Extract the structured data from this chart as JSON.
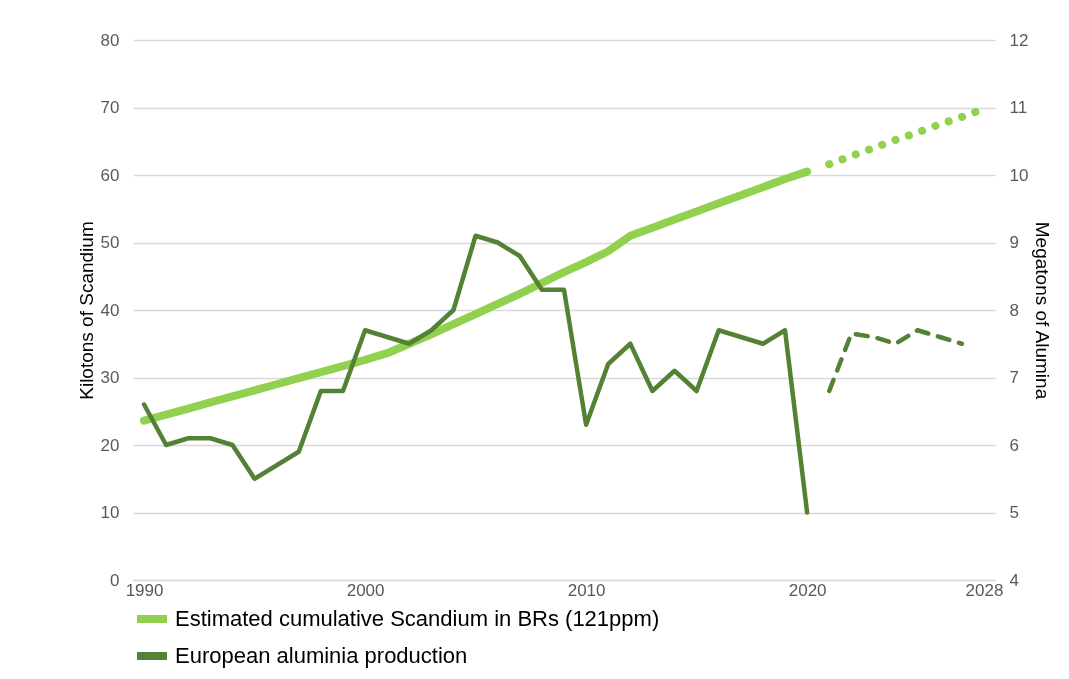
{
  "chart_data": {
    "type": "line",
    "ylabel": "Kilotons of Scandium",
    "y2label": "Megatons of Alumina",
    "xlim": [
      1989.5,
      2028.5
    ],
    "xticks": [
      1990,
      2000,
      2010,
      2020,
      2028
    ],
    "ylim": [
      0,
      80
    ],
    "yticks": [
      0,
      10,
      20,
      30,
      40,
      50,
      60,
      70,
      80
    ],
    "y2lim": [
      4,
      12
    ],
    "y2ticks": [
      4,
      5,
      6,
      7,
      8,
      9,
      10,
      11,
      12
    ],
    "grid": "y",
    "legend": "bottom",
    "marker": "none",
    "series": [
      {
        "name": "Estimated cumulative Scandium in BRs (121ppm)",
        "color": "#92d050",
        "axis": "y",
        "line_style": "solid",
        "x": [
          1990,
          1991,
          1992,
          1993,
          1994,
          1995,
          1996,
          1997,
          1998,
          1999,
          2000,
          2001,
          2002,
          2003,
          2004,
          2005,
          2006,
          2007,
          2008,
          2009,
          2010,
          2011,
          2012,
          2013,
          2014,
          2015,
          2016,
          2017,
          2018,
          2019,
          2020
        ],
        "values": [
          23.6,
          24.5,
          25.4,
          26.3,
          27.2,
          28.1,
          29.0,
          29.9,
          30.8,
          31.7,
          32.6,
          33.6,
          35.0,
          36.4,
          37.9,
          39.4,
          40.9,
          42.4,
          44.0,
          45.6,
          47.1,
          48.7,
          51.0,
          52.2,
          53.4,
          54.6,
          55.8,
          57.0,
          58.2,
          59.4,
          60.5
        ]
      },
      {
        "color": "#92d050",
        "axis": "y",
        "line_style": "dotted",
        "x": [
          2021,
          2022,
          2023,
          2024,
          2025,
          2026,
          2027,
          2028
        ],
        "values": [
          61.6,
          62.8,
          64.0,
          65.2,
          66.3,
          67.5,
          68.6,
          69.8
        ]
      },
      {
        "name": "European aluminia production",
        "color": "#548235",
        "axis": "y2",
        "line_style": "solid",
        "x": [
          1990,
          1991,
          1992,
          1993,
          1994,
          1995,
          1996,
          1997,
          1998,
          1999,
          2000,
          2001,
          2002,
          2003,
          2004,
          2005,
          2006,
          2007,
          2008,
          2009,
          2010,
          2011,
          2012,
          2013,
          2014,
          2015,
          2016,
          2017,
          2018,
          2019,
          2020
        ],
        "values": [
          6.6,
          6.0,
          6.1,
          6.1,
          6.0,
          5.5,
          5.7,
          5.9,
          6.8,
          6.8,
          7.7,
          7.6,
          7.5,
          7.7,
          8.0,
          9.1,
          9.0,
          8.8,
          8.3,
          8.3,
          6.3,
          7.2,
          7.5,
          6.8,
          7.1,
          6.8,
          7.7,
          7.6,
          7.5,
          7.7,
          5.0
        ]
      },
      {
        "color": "#548235",
        "axis": "y2",
        "line_style": "dashed",
        "x": [
          2021,
          2022,
          2023,
          2024,
          2025,
          2026,
          2027
        ],
        "values": [
          6.8,
          7.65,
          7.6,
          7.5,
          7.7,
          7.6,
          7.5
        ]
      }
    ]
  }
}
